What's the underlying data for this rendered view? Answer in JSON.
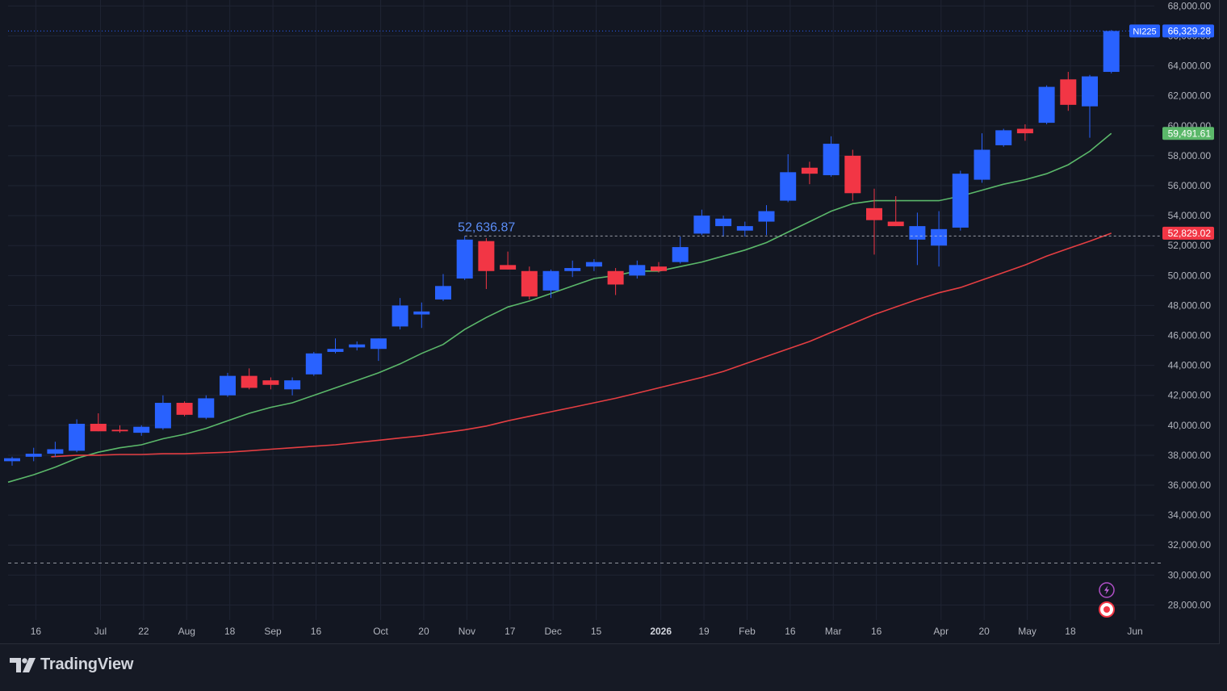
{
  "brand": {
    "name": "TradingView"
  },
  "colors": {
    "background": "#131722",
    "grid": "#1f2433",
    "up": "#2962ff",
    "down": "#f23645",
    "ma_short": "#5bb86a",
    "ma_long": "#e53e42",
    "axis_text": "#b2b5be"
  },
  "chart_data": {
    "type": "candlestick",
    "symbol": "NI225",
    "y_axis": {
      "position": "right",
      "min": 27000,
      "max": 68400,
      "ticks": [
        28000,
        30000,
        32000,
        34000,
        36000,
        38000,
        40000,
        42000,
        44000,
        46000,
        48000,
        50000,
        52000,
        54000,
        56000,
        58000,
        60000,
        62000,
        64000,
        66000,
        68000
      ],
      "tick_labels": [
        "28,000.00",
        "30,000.00",
        "32,000.00",
        "34,000.00",
        "36,000.00",
        "38,000.00",
        "40,000.00",
        "42,000.00",
        "44,000.00",
        "46,000.00",
        "48,000.00",
        "50,000.00",
        "52,000.00",
        "54,000.00",
        "56,000.00",
        "58,000.00",
        "60,000.00",
        "62,000.00",
        "64,000.00",
        "66,000.00",
        "68,000.00"
      ]
    },
    "x_axis": {
      "labels": [
        {
          "text": "Jun",
          "bold": false,
          "at": -0.9
        },
        {
          "text": "16",
          "bold": false,
          "at": 1.1
        },
        {
          "text": "Jul",
          "bold": false,
          "at": 4.1
        },
        {
          "text": "22",
          "bold": false,
          "at": 6.1
        },
        {
          "text": "Aug",
          "bold": false,
          "at": 8.1
        },
        {
          "text": "18",
          "bold": false,
          "at": 10.1
        },
        {
          "text": "Sep",
          "bold": false,
          "at": 12.1
        },
        {
          "text": "16",
          "bold": false,
          "at": 14.1
        },
        {
          "text": "Oct",
          "bold": false,
          "at": 17.1
        },
        {
          "text": "20",
          "bold": false,
          "at": 19.1
        },
        {
          "text": "Nov",
          "bold": false,
          "at": 21.1
        },
        {
          "text": "17",
          "bold": false,
          "at": 23.1
        },
        {
          "text": "Dec",
          "bold": false,
          "at": 25.1
        },
        {
          "text": "15",
          "bold": false,
          "at": 27.1
        },
        {
          "text": "2026",
          "bold": true,
          "at": 30.1
        },
        {
          "text": "19",
          "bold": false,
          "at": 32.1
        },
        {
          "text": "Feb",
          "bold": false,
          "at": 34.1
        },
        {
          "text": "16",
          "bold": false,
          "at": 36.1
        },
        {
          "text": "Mar",
          "bold": false,
          "at": 38.1
        },
        {
          "text": "16",
          "bold": false,
          "at": 40.1
        },
        {
          "text": "Apr",
          "bold": false,
          "at": 43.1
        },
        {
          "text": "20",
          "bold": false,
          "at": 45.1
        },
        {
          "text": "May",
          "bold": false,
          "at": 47.1
        },
        {
          "text": "18",
          "bold": false,
          "at": 49.1
        },
        {
          "text": "Jun",
          "bold": false,
          "at": 52.1
        }
      ]
    },
    "candles": [
      {
        "o": 37600,
        "h": 37900,
        "l": 37300,
        "c": 37800
      },
      {
        "o": 37900,
        "h": 38500,
        "l": 37600,
        "c": 38100
      },
      {
        "o": 38100,
        "h": 38900,
        "l": 37900,
        "c": 38400
      },
      {
        "o": 38300,
        "h": 40400,
        "l": 38200,
        "c": 40100
      },
      {
        "o": 40100,
        "h": 40800,
        "l": 39600,
        "c": 39600
      },
      {
        "o": 39700,
        "h": 40000,
        "l": 39500,
        "c": 39600
      },
      {
        "o": 39500,
        "h": 40000,
        "l": 39300,
        "c": 39900
      },
      {
        "o": 39800,
        "h": 42000,
        "l": 39700,
        "c": 41500
      },
      {
        "o": 41500,
        "h": 41600,
        "l": 40600,
        "c": 40700
      },
      {
        "o": 40500,
        "h": 42000,
        "l": 40400,
        "c": 41800
      },
      {
        "o": 42000,
        "h": 43500,
        "l": 41900,
        "c": 43300
      },
      {
        "o": 43300,
        "h": 43800,
        "l": 42400,
        "c": 42500
      },
      {
        "o": 43000,
        "h": 43200,
        "l": 42400,
        "c": 42700
      },
      {
        "o": 42400,
        "h": 43200,
        "l": 42000,
        "c": 43000
      },
      {
        "o": 43400,
        "h": 44900,
        "l": 43300,
        "c": 44800
      },
      {
        "o": 44900,
        "h": 45800,
        "l": 44800,
        "c": 45100
      },
      {
        "o": 45200,
        "h": 45600,
        "l": 45000,
        "c": 45400
      },
      {
        "o": 45100,
        "h": 45800,
        "l": 44300,
        "c": 45800
      },
      {
        "o": 46600,
        "h": 48500,
        "l": 46400,
        "c": 48000
      },
      {
        "o": 47400,
        "h": 48200,
        "l": 46500,
        "c": 47600
      },
      {
        "o": 48400,
        "h": 50100,
        "l": 48300,
        "c": 49300
      },
      {
        "o": 49800,
        "h": 52637,
        "l": 49700,
        "c": 52400
      },
      {
        "o": 52300,
        "h": 52500,
        "l": 49100,
        "c": 50300
      },
      {
        "o": 50700,
        "h": 51600,
        "l": 50400,
        "c": 50400
      },
      {
        "o": 50300,
        "h": 50600,
        "l": 48400,
        "c": 48600
      },
      {
        "o": 49000,
        "h": 50400,
        "l": 48500,
        "c": 50300
      },
      {
        "o": 50300,
        "h": 51000,
        "l": 49900,
        "c": 50500
      },
      {
        "o": 50600,
        "h": 51100,
        "l": 50300,
        "c": 50900
      },
      {
        "o": 50300,
        "h": 50500,
        "l": 48700,
        "c": 49400
      },
      {
        "o": 50000,
        "h": 51000,
        "l": 49800,
        "c": 50700
      },
      {
        "o": 50600,
        "h": 50900,
        "l": 50200,
        "c": 50300
      },
      {
        "o": 50900,
        "h": 52600,
        "l": 50800,
        "c": 51900
      },
      {
        "o": 52800,
        "h": 54400,
        "l": 52700,
        "c": 54000
      },
      {
        "o": 53300,
        "h": 54000,
        "l": 52600,
        "c": 53800
      },
      {
        "o": 53000,
        "h": 53600,
        "l": 52600,
        "c": 53300
      },
      {
        "o": 53600,
        "h": 54700,
        "l": 52700,
        "c": 54300
      },
      {
        "o": 55000,
        "h": 58100,
        "l": 54900,
        "c": 56900
      },
      {
        "o": 57200,
        "h": 57600,
        "l": 56100,
        "c": 56800
      },
      {
        "o": 56700,
        "h": 59300,
        "l": 56600,
        "c": 58800
      },
      {
        "o": 58000,
        "h": 58400,
        "l": 55000,
        "c": 55500
      },
      {
        "o": 54500,
        "h": 55800,
        "l": 51400,
        "c": 53700
      },
      {
        "o": 53600,
        "h": 55300,
        "l": 53300,
        "c": 53300
      },
      {
        "o": 52400,
        "h": 54200,
        "l": 50700,
        "c": 53300
      },
      {
        "o": 52000,
        "h": 54300,
        "l": 50600,
        "c": 53100
      },
      {
        "o": 53200,
        "h": 57000,
        "l": 53000,
        "c": 56800
      },
      {
        "o": 56400,
        "h": 59500,
        "l": 56200,
        "c": 58400
      },
      {
        "o": 58700,
        "h": 59800,
        "l": 58600,
        "c": 59700
      },
      {
        "o": 59800,
        "h": 60100,
        "l": 59000,
        "c": 59500
      },
      {
        "o": 60200,
        "h": 62700,
        "l": 60100,
        "c": 62600
      },
      {
        "o": 63100,
        "h": 63600,
        "l": 61000,
        "c": 61400
      },
      {
        "o": 61300,
        "h": 63400,
        "l": 59200,
        "c": 63300
      },
      {
        "o": 63600,
        "h": 66400,
        "l": 63500,
        "c": 66329
      }
    ],
    "series": [
      {
        "color": "#5bb86a",
        "values": [
          36200,
          36700,
          37200,
          37800,
          38200,
          38500,
          38700,
          39100,
          39400,
          39800,
          40300,
          40800,
          41200,
          41500,
          42000,
          42500,
          43000,
          43500,
          44100,
          44800,
          45400,
          46400,
          47200,
          47900,
          48300,
          48800,
          49300,
          49800,
          50000,
          50300,
          50300,
          50600,
          50900,
          51300,
          51700,
          52200,
          52900,
          53600,
          54300,
          54800,
          55000,
          55000,
          55000,
          55000,
          55300,
          55700,
          56100,
          56400,
          56800,
          57400,
          58300,
          59492
        ]
      },
      {
        "color": "#e53e42",
        "values": [
          37900,
          38000,
          38000,
          38050,
          38050,
          38100,
          38100,
          38150,
          38200,
          38300,
          38400,
          38500,
          38600,
          38700,
          38850,
          39000,
          39150,
          39300,
          39500,
          39700,
          39950,
          40300,
          40600,
          40900,
          41200,
          41500,
          41800,
          42150,
          42500,
          42850,
          43200,
          43600,
          44100,
          44600,
          45100,
          45600,
          46200,
          46800,
          47400,
          47900,
          48400,
          48850,
          49200,
          49700,
          50200,
          50700,
          51300,
          51800,
          52300,
          52829
        ]
      }
    ],
    "price_labels": [
      {
        "symbol": "NI225",
        "value": 66329.28,
        "text": "66,329.28",
        "color": "#2962ff",
        "line": "dotted"
      },
      {
        "value": 59491.61,
        "text": "59,491.61",
        "color": "#5bb86a"
      },
      {
        "value": 52829.02,
        "text": "52,829.02",
        "color": "#f23645"
      }
    ],
    "annotations": [
      {
        "text": "52,636.87",
        "value": 52636.87,
        "candle_index": 21,
        "color": "#5b8df6",
        "dashed_line": true
      }
    ],
    "horizontal_lines": [
      {
        "value": 30800,
        "style": "dashed",
        "color": "#b2b5be"
      }
    ]
  }
}
